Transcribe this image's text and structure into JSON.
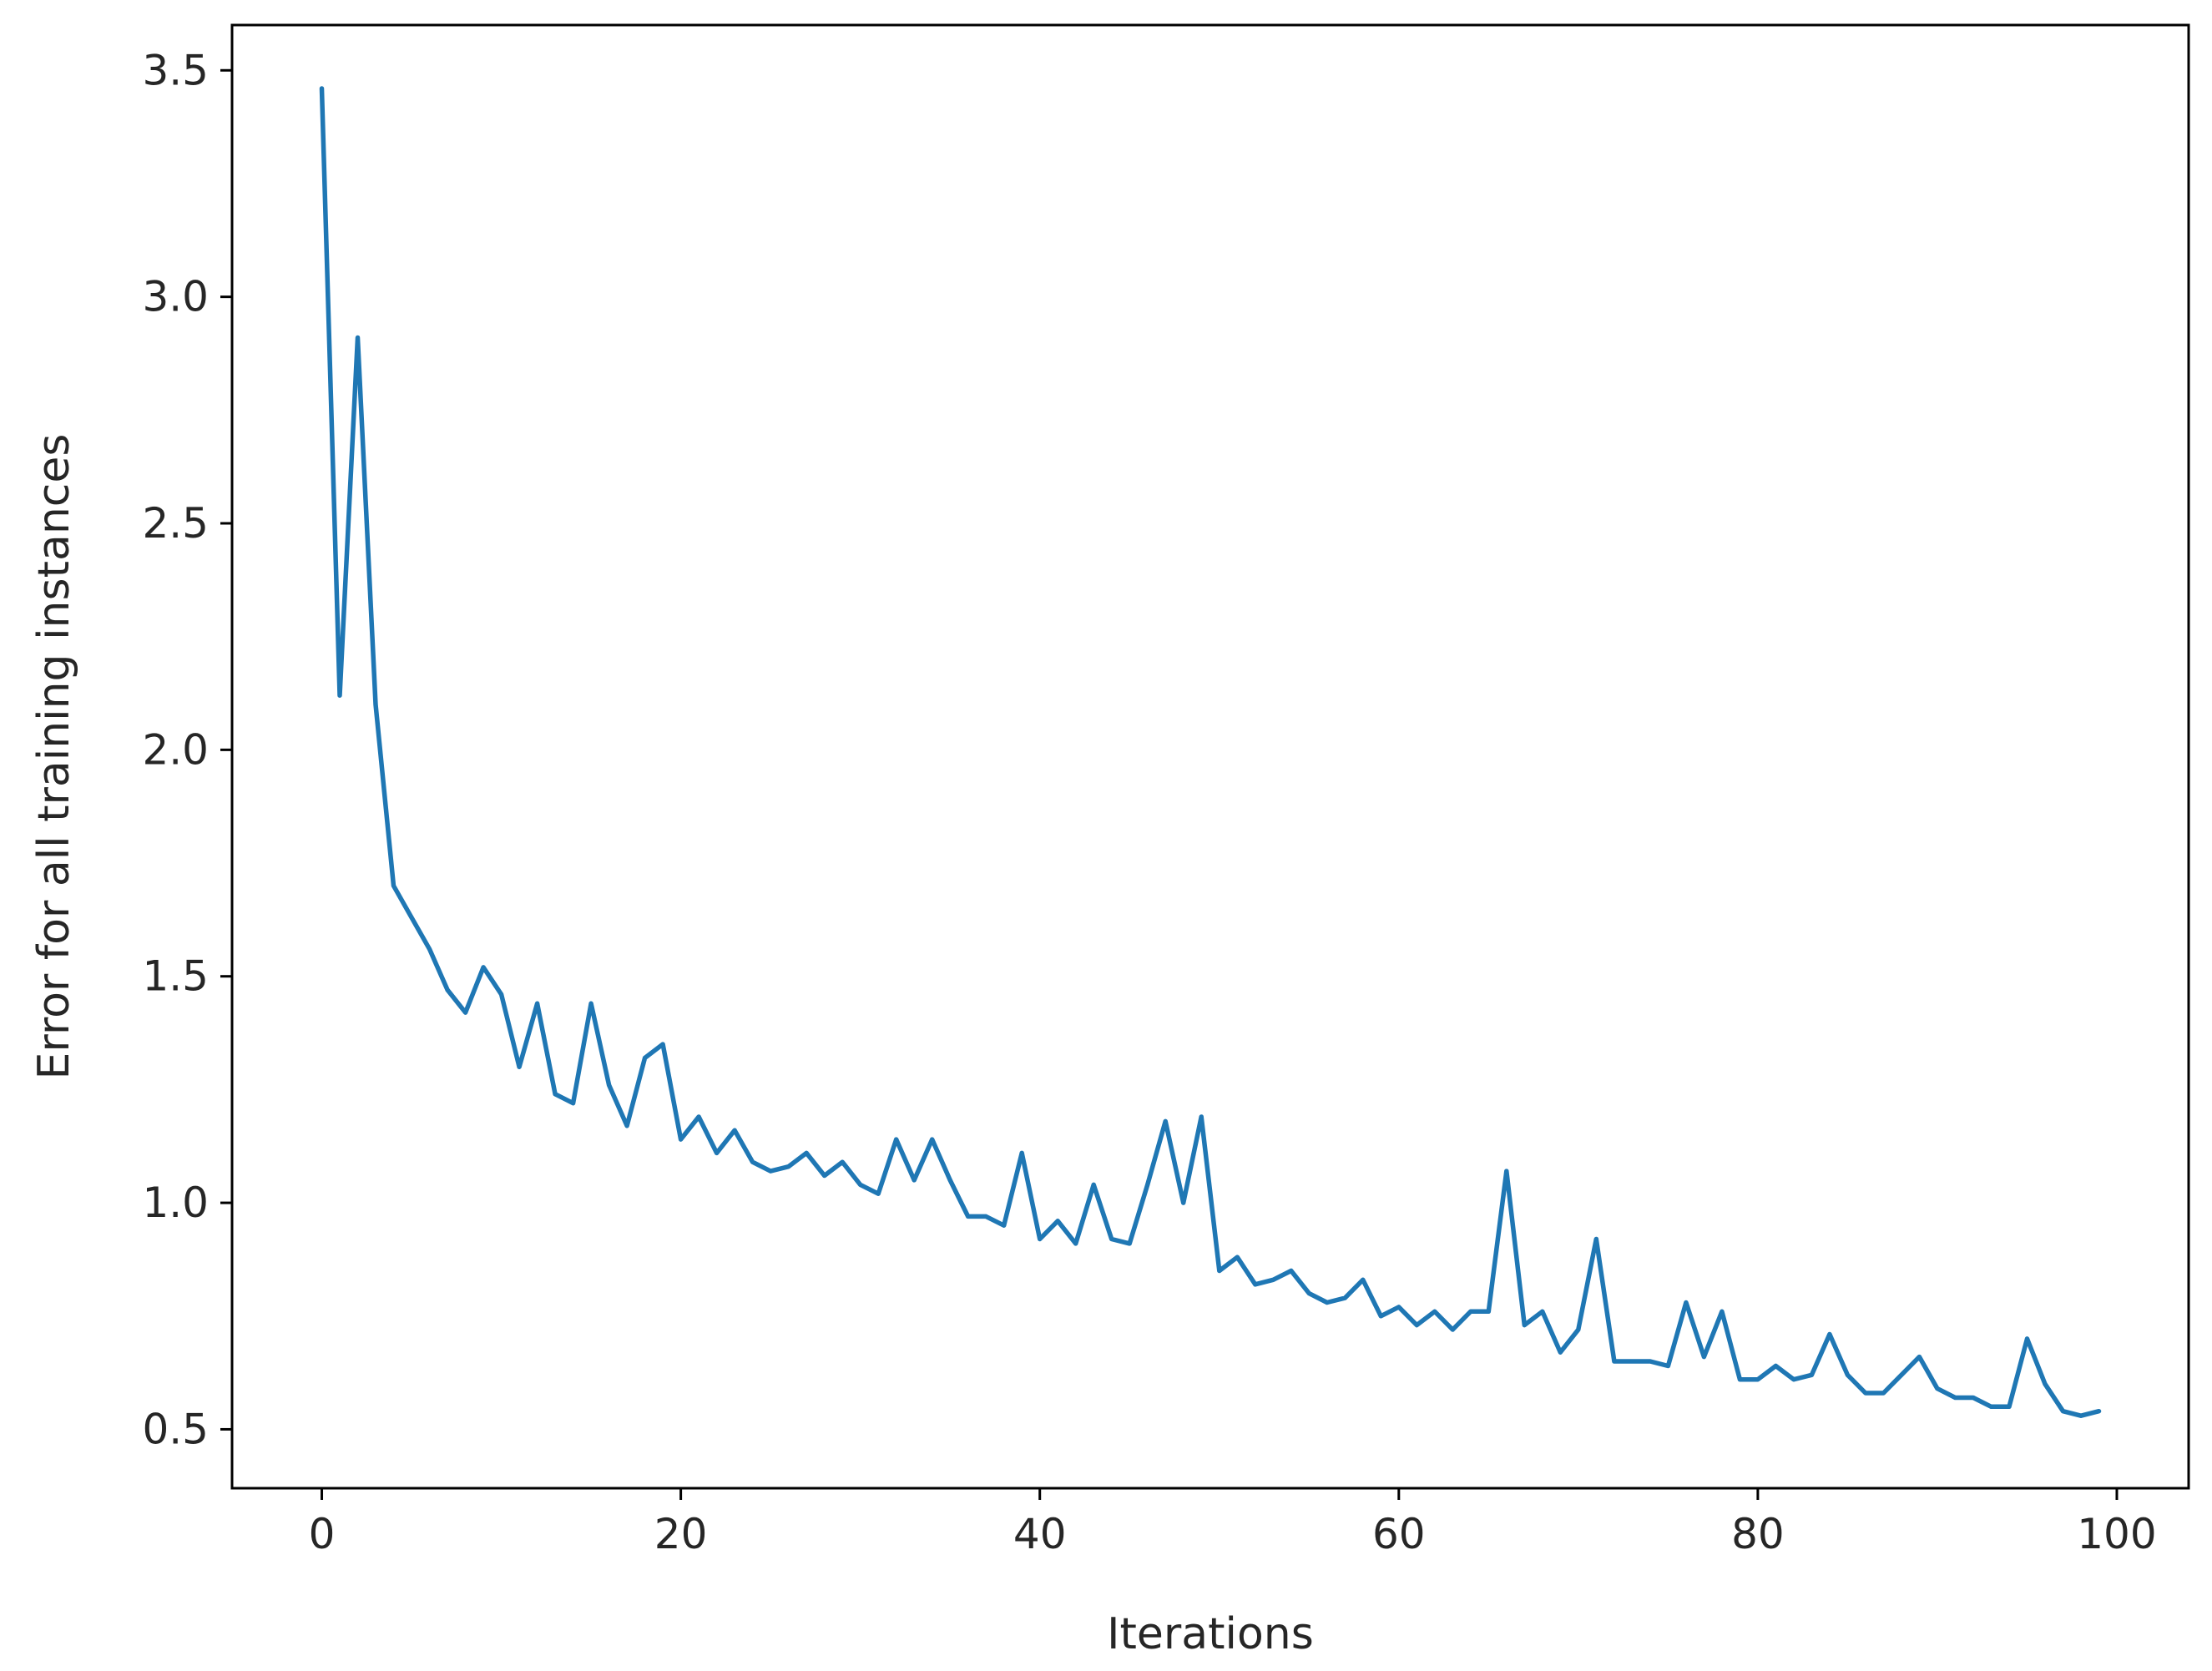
{
  "chart_data": {
    "type": "line",
    "xlabel": "Iterations",
    "ylabel": "Error for all training instances",
    "xlim": [
      -5,
      104
    ],
    "ylim": [
      0.37,
      3.6
    ],
    "x_ticks": [
      0,
      20,
      40,
      60,
      80,
      100
    ],
    "y_ticks": [
      0.5,
      1.0,
      1.5,
      2.0,
      2.5,
      3.0,
      3.5
    ],
    "x_tick_labels": [
      "0",
      "20",
      "40",
      "60",
      "80",
      "100"
    ],
    "y_tick_labels": [
      "0.5",
      "1.0",
      "1.5",
      "2.0",
      "2.5",
      "3.0",
      "3.5"
    ],
    "grid": false,
    "series": [
      {
        "color": "#1f77b4",
        "x": [
          0,
          1,
          2,
          3,
          4,
          5,
          6,
          7,
          8,
          9,
          10,
          11,
          12,
          13,
          14,
          15,
          16,
          17,
          18,
          19,
          20,
          21,
          22,
          23,
          24,
          25,
          26,
          27,
          28,
          29,
          30,
          31,
          32,
          33,
          34,
          35,
          36,
          37,
          38,
          39,
          40,
          41,
          42,
          43,
          44,
          45,
          46,
          47,
          48,
          49,
          50,
          51,
          52,
          53,
          54,
          55,
          56,
          57,
          58,
          59,
          60,
          61,
          62,
          63,
          64,
          65,
          66,
          67,
          68,
          69,
          70,
          71,
          72,
          73,
          74,
          75,
          76,
          77,
          78,
          79,
          80,
          81,
          82,
          83,
          84,
          85,
          86,
          87,
          88,
          89,
          90,
          91,
          92,
          93,
          94,
          95,
          96,
          97,
          98,
          99
        ],
        "y": [
          3.46,
          2.12,
          2.91,
          2.1,
          1.7,
          1.63,
          1.56,
          1.47,
          1.42,
          1.52,
          1.46,
          1.3,
          1.44,
          1.24,
          1.22,
          1.44,
          1.26,
          1.17,
          1.32,
          1.35,
          1.14,
          1.19,
          1.11,
          1.16,
          1.09,
          1.07,
          1.08,
          1.11,
          1.06,
          1.09,
          1.04,
          1.02,
          1.14,
          1.05,
          1.14,
          1.05,
          0.97,
          0.97,
          0.95,
          1.11,
          0.92,
          0.96,
          0.91,
          1.04,
          0.92,
          0.91,
          1.04,
          1.18,
          1.0,
          1.19,
          0.85,
          0.88,
          0.82,
          0.83,
          0.85,
          0.8,
          0.78,
          0.79,
          0.83,
          0.75,
          0.77,
          0.73,
          0.76,
          0.72,
          0.76,
          0.76,
          1.07,
          0.73,
          0.76,
          0.67,
          0.72,
          0.92,
          0.65,
          0.65,
          0.65,
          0.64,
          0.78,
          0.66,
          0.76,
          0.61,
          0.61,
          0.64,
          0.61,
          0.62,
          0.71,
          0.62,
          0.58,
          0.58,
          0.62,
          0.66,
          0.59,
          0.57,
          0.57,
          0.55,
          0.55,
          0.7,
          0.6,
          0.54,
          0.53,
          0.54
        ]
      }
    ]
  }
}
